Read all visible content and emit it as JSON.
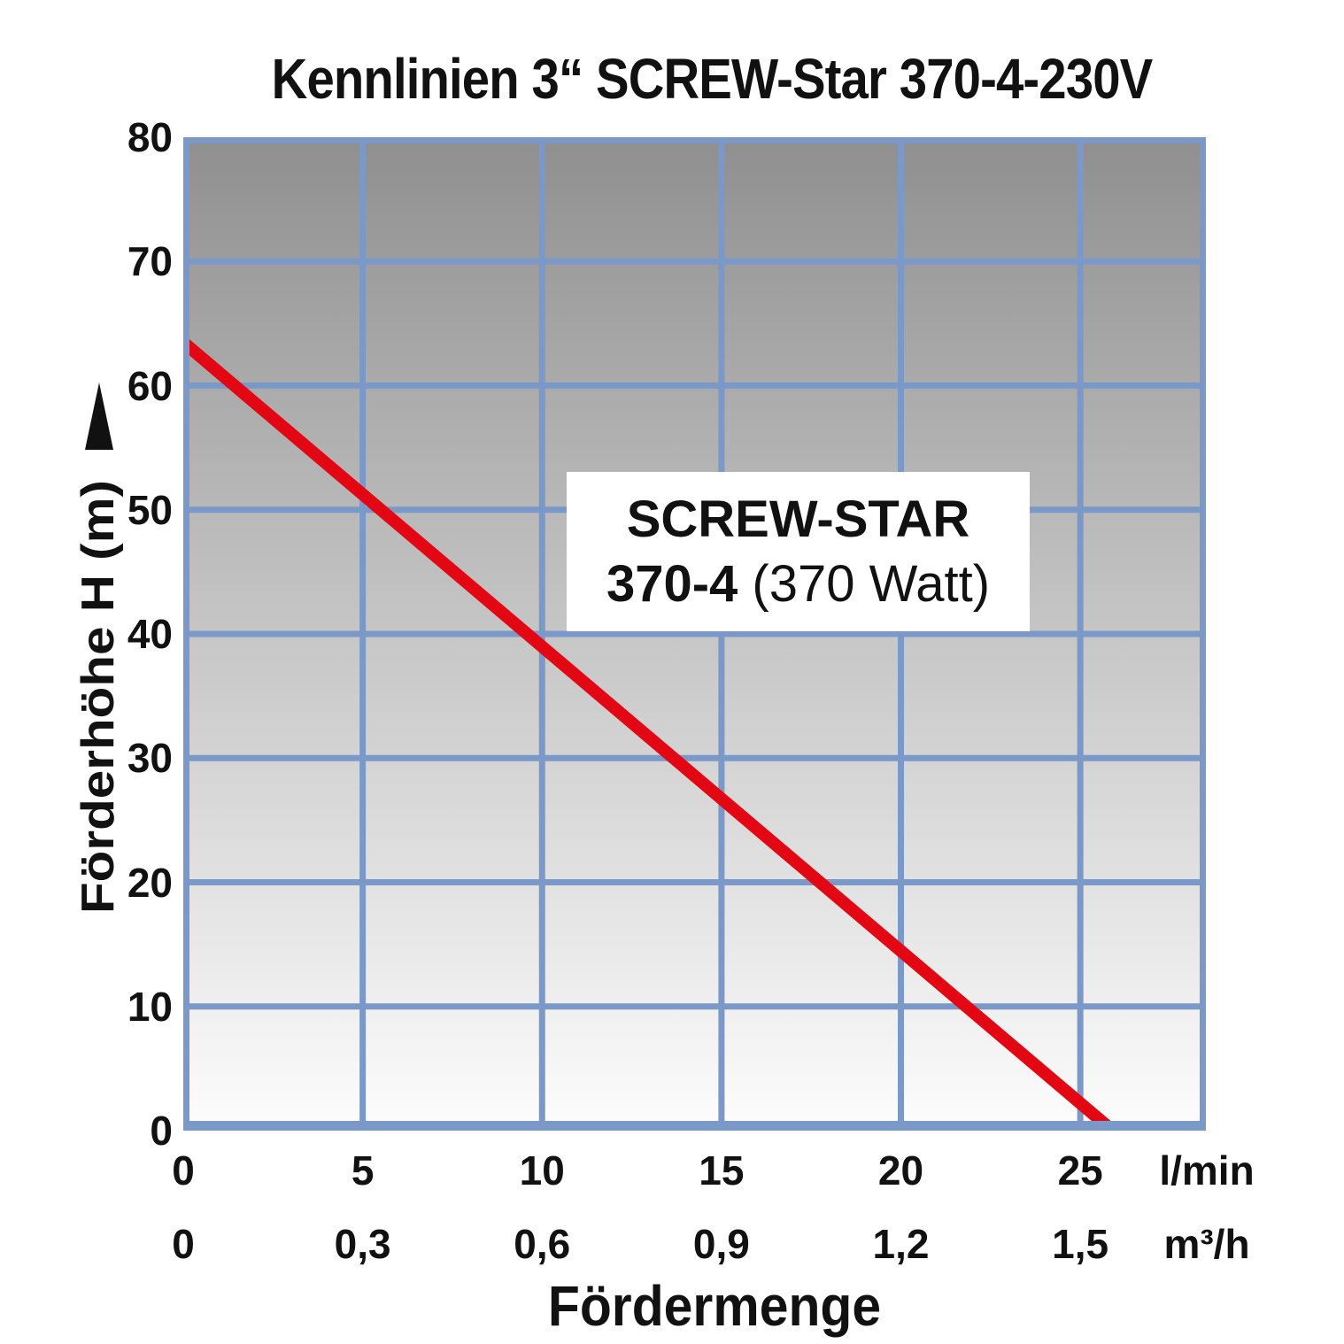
{
  "colors": {
    "curve_red": "#e30613",
    "grid_blue": "#7b99c8",
    "plot_bg_top": "#8f8f8f",
    "plot_bg_bottom": "#fdfdfd",
    "text": "#111111",
    "annotation_bg": "#ffffff"
  },
  "chart_data": {
    "type": "line",
    "title": "Kennlinien 3“ SCREW-Star 370-4-230V",
    "xlabel": "Fördermenge",
    "ylabel": "Förderhöhe H (m)",
    "x_units": [
      "l/min",
      "m³/h"
    ],
    "xlim": [
      0,
      28.5
    ],
    "ylim": [
      0,
      80
    ],
    "x_tick_step": 5,
    "y_tick_step": 10,
    "grid": true,
    "y_ticks": [
      "80",
      "70",
      "60",
      "50",
      "40",
      "30",
      "20",
      "10",
      "0"
    ],
    "x_ticks_lmin": [
      "0",
      "5",
      "10",
      "15",
      "20",
      "25"
    ],
    "x_ticks_m3h": [
      "0",
      "0,3",
      "0,6",
      "0,9",
      "1,2",
      "1,5"
    ],
    "series": [
      {
        "name": "SCREW-STAR 370-4 (370 Watt)",
        "color": "#e30613",
        "points_lmin_m": [
          [
            0,
            63.5
          ],
          [
            25.9,
            0
          ]
        ]
      }
    ],
    "annotation": {
      "line1": "SCREW-STAR",
      "line2_bold": "370-4",
      "line2_regular": " (370 Watt)"
    }
  }
}
